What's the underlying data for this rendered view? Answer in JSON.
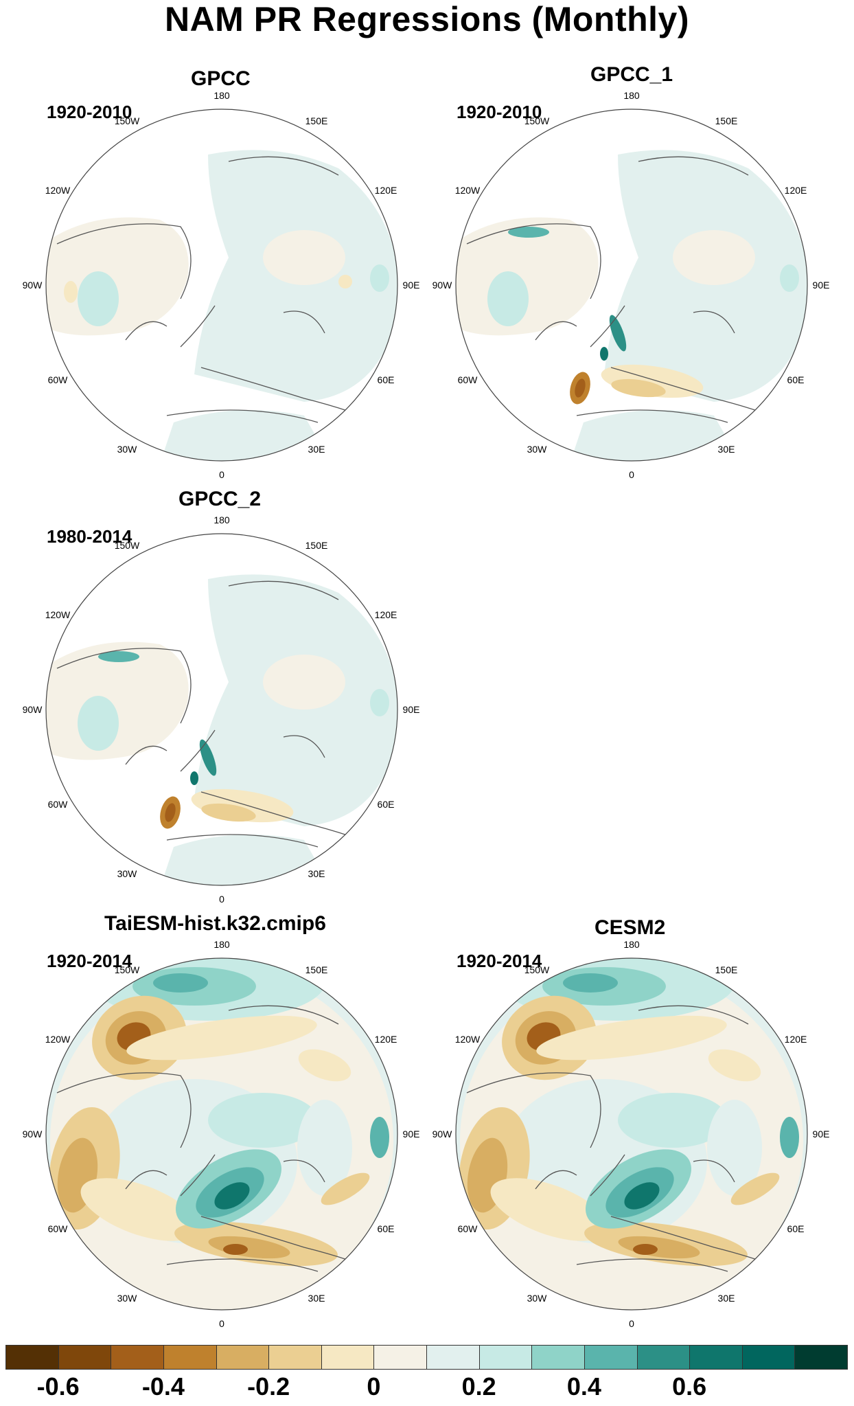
{
  "figure_title": "NAM PR Regressions (Monthly)",
  "longitude_labels": [
    "180",
    "150E",
    "120E",
    "90E",
    "60E",
    "30E",
    "0",
    "30W",
    "60W",
    "90W",
    "120W",
    "150W"
  ],
  "panels": [
    {
      "title": "GPCC",
      "period": "1920-2010",
      "pattern": "weak_obs"
    },
    {
      "title": "GPCC_1",
      "period": "1920-2010",
      "pattern": "obs_europe"
    },
    {
      "title": "GPCC_2",
      "period": "1980-2014",
      "pattern": "obs_europe"
    },
    {
      "title": "TaiESM-hist.k32.cmip6",
      "period": "1920-2014",
      "pattern": "model"
    },
    {
      "title": "CESM2",
      "period": "1920-2014",
      "pattern": "model"
    }
  ],
  "colorbar": {
    "colors": [
      "#543005",
      "#7f470b",
      "#a35f1a",
      "#bf812d",
      "#d8ae62",
      "#ebcf92",
      "#f6e8c3",
      "#f5f1e6",
      "#e2f0ee",
      "#c7eae5",
      "#8fd3c8",
      "#5ab4ac",
      "#2c9086",
      "#0f766c",
      "#01665e",
      "#003c30"
    ],
    "tick_labels": [
      "-0.6",
      "-0.4",
      "-0.2",
      "0",
      "0.2",
      "0.4",
      "0.6"
    ],
    "tick_positions": [
      1,
      3,
      5,
      7,
      9,
      11,
      13
    ]
  }
}
